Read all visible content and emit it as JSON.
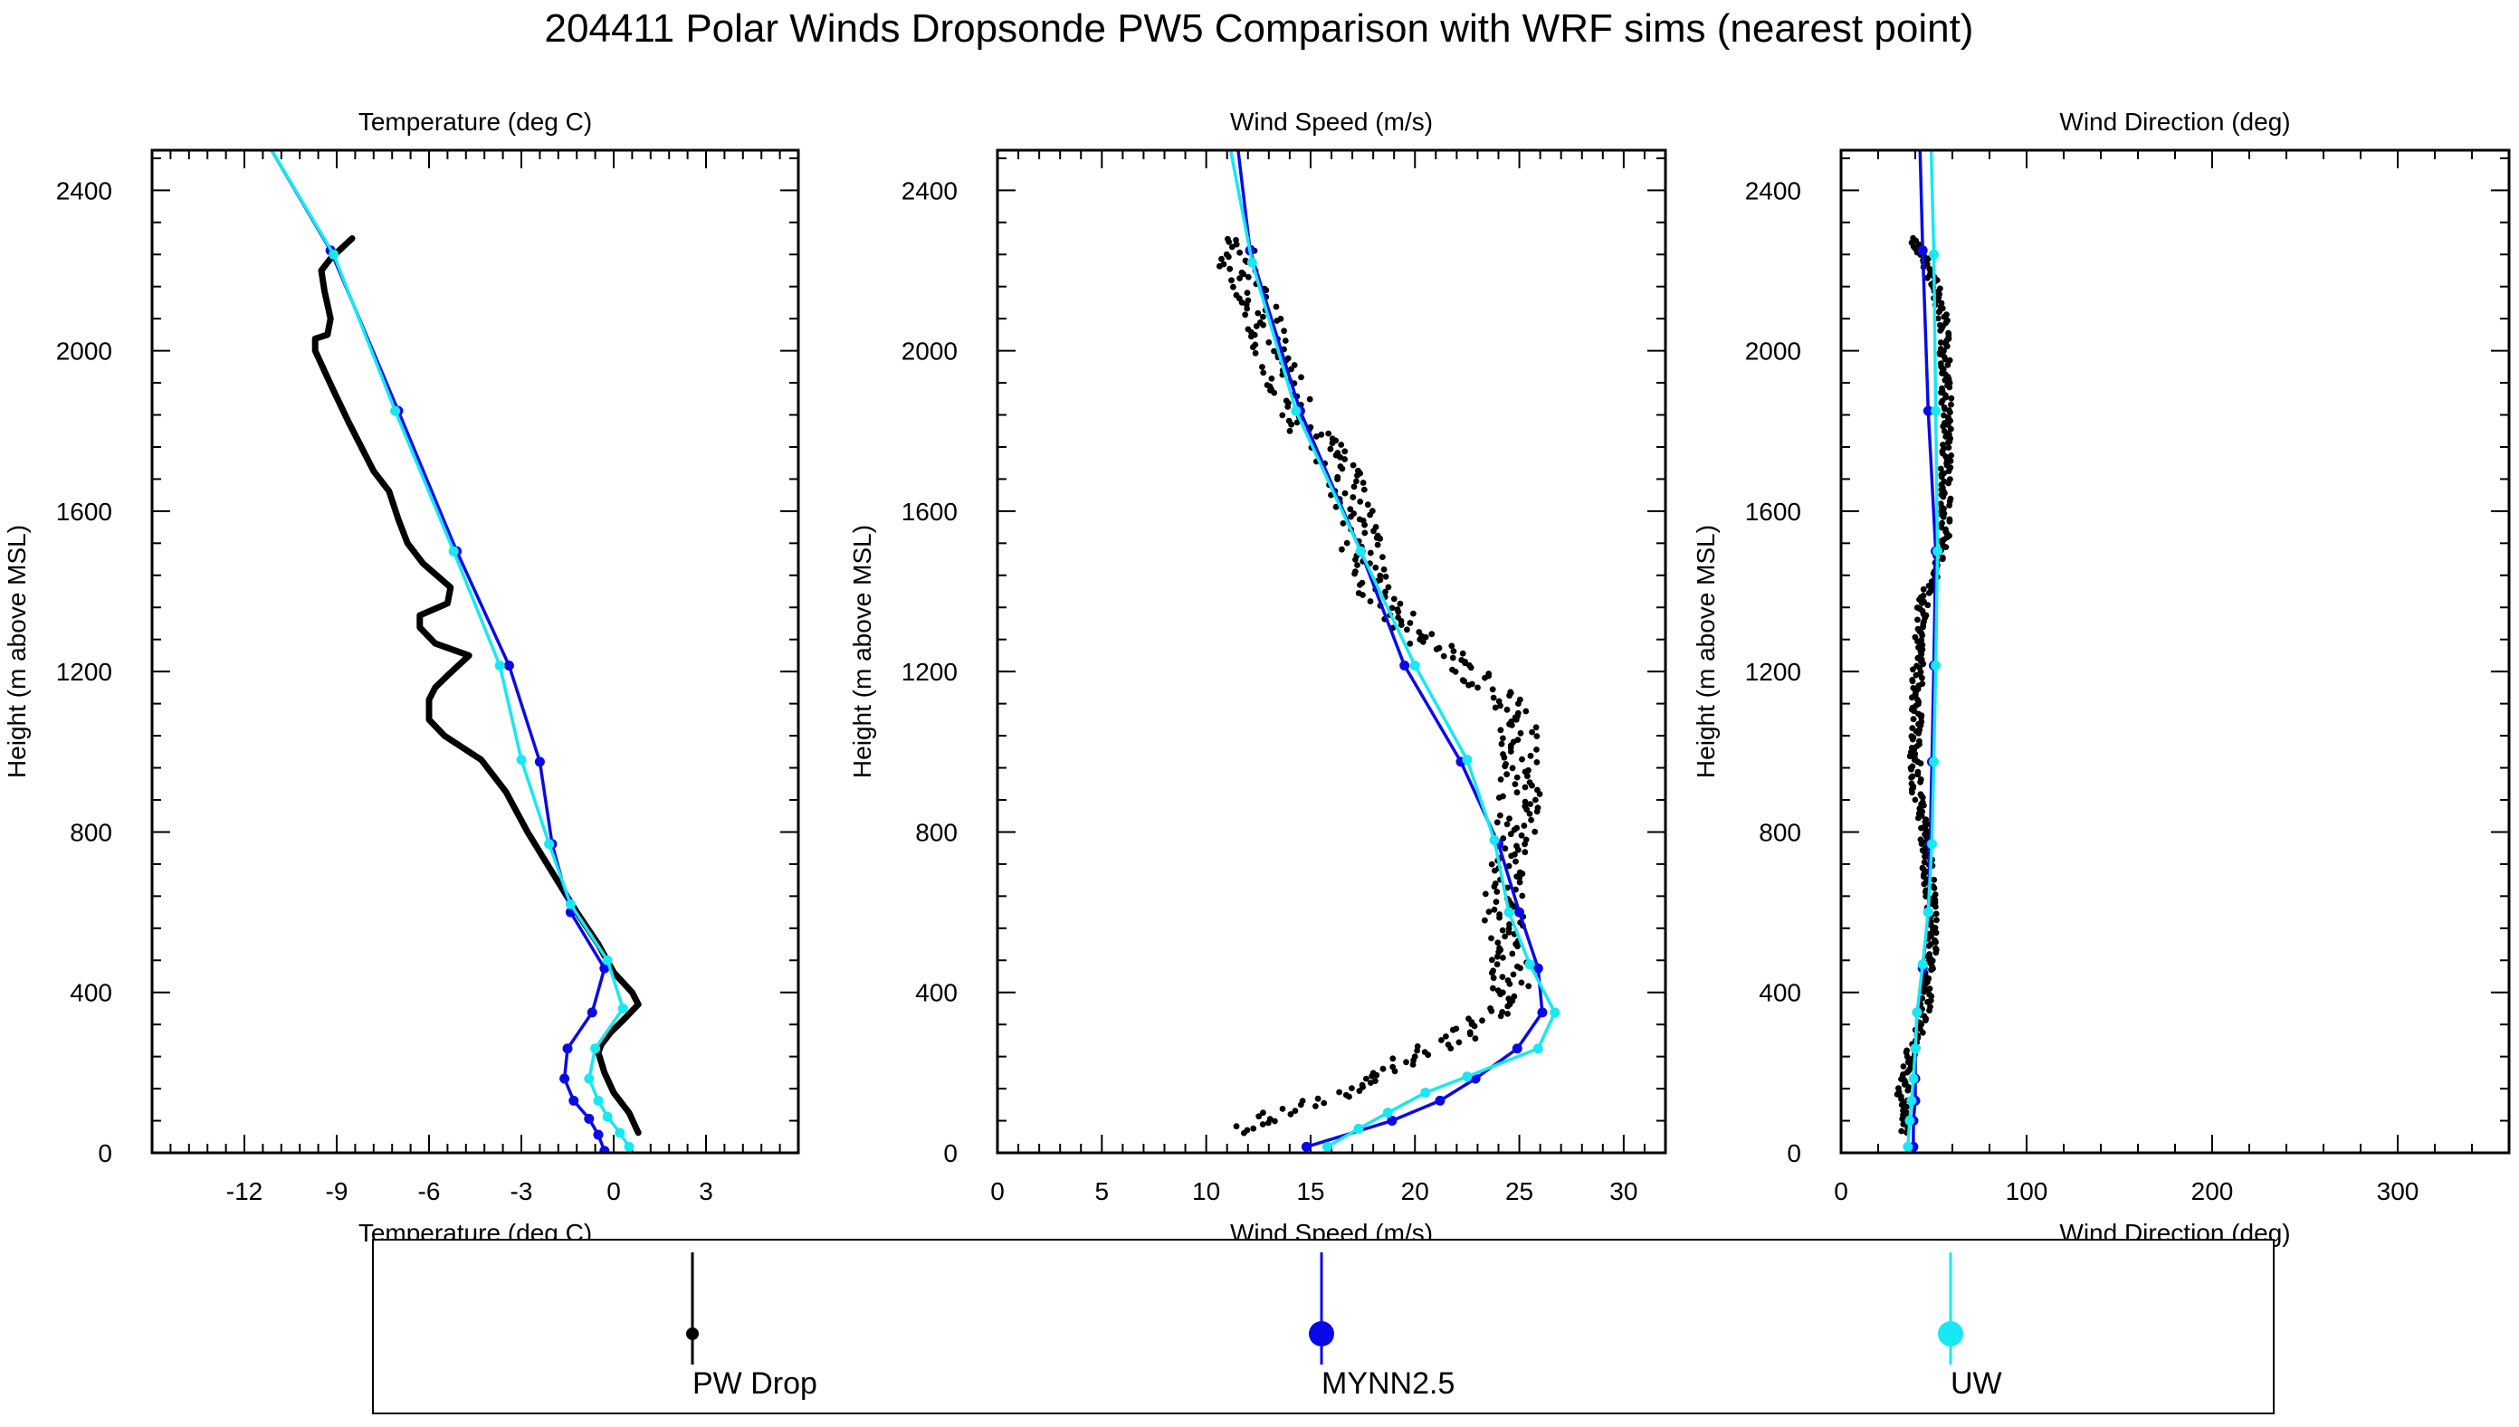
{
  "figure": {
    "title": "204411 Polar Winds Dropsonde PW5 Comparison with WRF sims (nearest point)"
  },
  "legend": {
    "items": [
      {
        "label": "PW Drop",
        "color": "#000000",
        "marker": "small-dot"
      },
      {
        "label": "MYNN2.5",
        "color": "#0a0ae6",
        "marker": "large-dot"
      },
      {
        "label": "UW",
        "color": "#17e8f2",
        "marker": "large-dot"
      }
    ]
  },
  "colors": {
    "obs": "#000000",
    "mynn": "#0a0ae6",
    "uw": "#17e8f2"
  },
  "chart_data": [
    {
      "type": "line",
      "title": "Temperature (deg C)",
      "xlabel": "Temperature (deg C)",
      "ylabel": "Height (m above MSL)",
      "xlim": [
        -15,
        6
      ],
      "ylim": [
        0,
        2500
      ],
      "xticks": [
        -12,
        -9,
        -6,
        -3,
        0,
        3
      ],
      "xtick_labels": [
        "-12",
        "-9",
        "-6",
        "-3",
        "0",
        "3"
      ],
      "yticks": [
        0,
        400,
        800,
        1200,
        1600,
        2000,
        2400
      ],
      "ytick_labels": [
        "0",
        "400",
        "800",
        "1200",
        "1600",
        "2000",
        "2400"
      ],
      "series": [
        {
          "name": "PW Drop",
          "mode": "line",
          "color": "#000000",
          "points": [
            [
              0.8,
              50
            ],
            [
              0.5,
              100
            ],
            [
              0.0,
              150
            ],
            [
              -0.3,
              200
            ],
            [
              -0.5,
              250
            ],
            [
              -0.4,
              270
            ],
            [
              -0.1,
              300
            ],
            [
              0.3,
              330
            ],
            [
              0.8,
              370
            ],
            [
              0.6,
              400
            ],
            [
              0.0,
              450
            ],
            [
              -0.5,
              520
            ],
            [
              -1.2,
              600
            ],
            [
              -2.0,
              700
            ],
            [
              -2.8,
              800
            ],
            [
              -3.5,
              900
            ],
            [
              -4.3,
              980
            ],
            [
              -5.5,
              1040
            ],
            [
              -6.0,
              1080
            ],
            [
              -6.0,
              1130
            ],
            [
              -5.8,
              1160
            ],
            [
              -5.4,
              1190
            ],
            [
              -4.7,
              1240
            ],
            [
              -5.8,
              1270
            ],
            [
              -6.3,
              1310
            ],
            [
              -6.3,
              1340
            ],
            [
              -5.4,
              1370
            ],
            [
              -5.3,
              1410
            ],
            [
              -6.2,
              1470
            ],
            [
              -6.7,
              1520
            ],
            [
              -7.0,
              1580
            ],
            [
              -7.3,
              1650
            ],
            [
              -7.8,
              1700
            ],
            [
              -8.2,
              1760
            ],
            [
              -8.6,
              1820
            ],
            [
              -9.1,
              1900
            ],
            [
              -9.4,
              1950
            ],
            [
              -9.7,
              2000
            ],
            [
              -9.7,
              2030
            ],
            [
              -9.3,
              2040
            ],
            [
              -9.2,
              2080
            ],
            [
              -9.4,
              2150
            ],
            [
              -9.5,
              2200
            ],
            [
              -9.2,
              2230
            ],
            [
              -8.5,
              2280
            ]
          ]
        },
        {
          "name": "MYNN2.5",
          "mode": "line-markers",
          "color": "#0a0ae6",
          "points": [
            [
              -0.3,
              5
            ],
            [
              -0.5,
              45
            ],
            [
              -0.8,
              85
            ],
            [
              -1.3,
              130
            ],
            [
              -1.6,
              185
            ],
            [
              -1.5,
              260
            ],
            [
              -0.7,
              350
            ],
            [
              -0.3,
              460
            ],
            [
              -1.4,
              600
            ],
            [
              -2.0,
              770
            ],
            [
              -2.4,
              975
            ],
            [
              -3.4,
              1215
            ],
            [
              -5.1,
              1500
            ],
            [
              -7.0,
              1850
            ],
            [
              -9.2,
              2250
            ],
            [
              -11.5,
              2550
            ]
          ]
        },
        {
          "name": "UW",
          "mode": "line-markers",
          "color": "#17e8f2",
          "points": [
            [
              0.5,
              15
            ],
            [
              0.2,
              50
            ],
            [
              -0.2,
              90
            ],
            [
              -0.5,
              130
            ],
            [
              -0.8,
              185
            ],
            [
              -0.6,
              260
            ],
            [
              0.3,
              360
            ],
            [
              -0.2,
              480
            ],
            [
              -1.4,
              620
            ],
            [
              -2.1,
              770
            ],
            [
              -3.0,
              980
            ],
            [
              -3.7,
              1215
            ],
            [
              -5.2,
              1500
            ],
            [
              -7.1,
              1850
            ],
            [
              -9.1,
              2240
            ],
            [
              -11.5,
              2550
            ]
          ]
        }
      ]
    },
    {
      "type": "scatter",
      "title": "Wind Speed (m/s)",
      "xlabel": "Wind Speed (m/s)",
      "ylabel": "Height (m above MSL)",
      "xlim": [
        0,
        32
      ],
      "ylim": [
        0,
        2500
      ],
      "xticks": [
        0,
        5,
        10,
        15,
        20,
        25,
        30
      ],
      "xtick_labels": [
        "0",
        "5",
        "10",
        "15",
        "20",
        "25",
        "30"
      ],
      "yticks": [
        0,
        400,
        800,
        1200,
        1600,
        2000,
        2400
      ],
      "ytick_labels": [
        "0",
        "400",
        "800",
        "1200",
        "1600",
        "2000",
        "2400"
      ],
      "series": [
        {
          "name": "PW Drop",
          "mode": "points",
          "color": "#000000",
          "profile": [
            [
              50,
              11.5
            ],
            [
              100,
              13.5
            ],
            [
              150,
              16.5
            ],
            [
              200,
              18.5
            ],
            [
              250,
              20.5
            ],
            [
              300,
              22.5
            ],
            [
              350,
              24.0
            ],
            [
              400,
              24.5
            ],
            [
              500,
              24.5
            ],
            [
              600,
              24.2
            ],
            [
              700,
              24.5
            ],
            [
              800,
              24.8
            ],
            [
              900,
              25.0
            ],
            [
              1000,
              25.2
            ],
            [
              1100,
              24.8
            ],
            [
              1200,
              22.5
            ],
            [
              1300,
              20.0
            ],
            [
              1400,
              18.0
            ],
            [
              1500,
              17.5
            ],
            [
              1600,
              17.0
            ],
            [
              1700,
              16.5
            ],
            [
              1800,
              15.0
            ],
            [
              1900,
              14.0
            ],
            [
              2000,
              13.3
            ],
            [
              2100,
              12.5
            ],
            [
              2200,
              11.5
            ],
            [
              2280,
              12.0
            ]
          ],
          "spread_ms": 1.0,
          "spacing_m": 5,
          "height_range": [
            50,
            2280
          ]
        },
        {
          "name": "MYNN2.5",
          "mode": "line-markers",
          "color": "#0a0ae6",
          "points": [
            [
              14.8,
              15
            ],
            [
              18.9,
              80
            ],
            [
              21.2,
              130
            ],
            [
              22.9,
              185
            ],
            [
              24.9,
              260
            ],
            [
              26.1,
              350
            ],
            [
              25.9,
              460
            ],
            [
              25.0,
              600
            ],
            [
              24.0,
              770
            ],
            [
              22.2,
              975
            ],
            [
              19.5,
              1215
            ],
            [
              17.4,
              1500
            ],
            [
              14.5,
              1850
            ],
            [
              12.1,
              2250
            ],
            [
              11.3,
              2600
            ]
          ]
        },
        {
          "name": "UW",
          "mode": "line-markers",
          "color": "#17e8f2",
          "points": [
            [
              15.8,
              15
            ],
            [
              17.3,
              60
            ],
            [
              18.7,
              100
            ],
            [
              20.5,
              150
            ],
            [
              22.5,
              190
            ],
            [
              25.9,
              260
            ],
            [
              26.7,
              350
            ],
            [
              25.5,
              470
            ],
            [
              24.5,
              600
            ],
            [
              23.8,
              780
            ],
            [
              22.5,
              980
            ],
            [
              20.0,
              1215
            ],
            [
              17.4,
              1500
            ],
            [
              14.3,
              1850
            ],
            [
              12.2,
              2220
            ],
            [
              10.8,
              2600
            ]
          ]
        }
      ]
    },
    {
      "type": "scatter",
      "title": "Wind Direction (deg)",
      "xlabel": "Wind Direction (deg)",
      "ylabel": "Height (m above MSL)",
      "xlim": [
        0,
        360
      ],
      "ylim": [
        0,
        2500
      ],
      "xticks": [
        0,
        100,
        200,
        300
      ],
      "xtick_labels": [
        "0",
        "100",
        "200",
        "300"
      ],
      "yticks": [
        0,
        400,
        800,
        1200,
        1600,
        2000,
        2400
      ],
      "ytick_labels": [
        "0",
        "400",
        "800",
        "1200",
        "1600",
        "2000",
        "2400"
      ],
      "series": [
        {
          "name": "PW Drop",
          "mode": "points",
          "color": "#000000",
          "profile": [
            [
              50,
              33
            ],
            [
              150,
              33
            ],
            [
              250,
              38
            ],
            [
              350,
              45
            ],
            [
              450,
              48
            ],
            [
              550,
              49
            ],
            [
              650,
              48
            ],
            [
              750,
              46
            ],
            [
              800,
              45
            ],
            [
              900,
              41
            ],
            [
              1000,
              40
            ],
            [
              1200,
              41
            ],
            [
              1350,
              43
            ],
            [
              1450,
              50
            ],
            [
              1500,
              55
            ],
            [
              1600,
              56
            ],
            [
              1800,
              57
            ],
            [
              2000,
              56
            ],
            [
              2100,
              54
            ],
            [
              2200,
              48
            ],
            [
              2280,
              40
            ]
          ],
          "spread_deg": 3,
          "spacing_m": 5,
          "height_range": [
            50,
            2280
          ]
        },
        {
          "name": "MYNN2.5",
          "mode": "line-markers",
          "color": "#0a0ae6",
          "points": [
            [
              39,
              15
            ],
            [
              39,
              80
            ],
            [
              40,
              130
            ],
            [
              40,
              185
            ],
            [
              40,
              260
            ],
            [
              41,
              350
            ],
            [
              44,
              460
            ],
            [
              47,
              600
            ],
            [
              48,
              770
            ],
            [
              49,
              975
            ],
            [
              50,
              1215
            ],
            [
              51,
              1500
            ],
            [
              47,
              1850
            ],
            [
              44,
              2250
            ],
            [
              42,
              2600
            ]
          ]
        },
        {
          "name": "UW",
          "mode": "line-markers",
          "color": "#17e8f2",
          "points": [
            [
              36,
              15
            ],
            [
              37,
              80
            ],
            [
              38,
              130
            ],
            [
              39,
              185
            ],
            [
              40,
              260
            ],
            [
              41,
              350
            ],
            [
              44,
              470
            ],
            [
              47,
              600
            ],
            [
              49,
              770
            ],
            [
              50,
              975
            ],
            [
              51,
              1215
            ],
            [
              52,
              1500
            ],
            [
              51,
              1850
            ],
            [
              50,
              2240
            ],
            [
              48,
              2600
            ]
          ]
        }
      ]
    }
  ]
}
